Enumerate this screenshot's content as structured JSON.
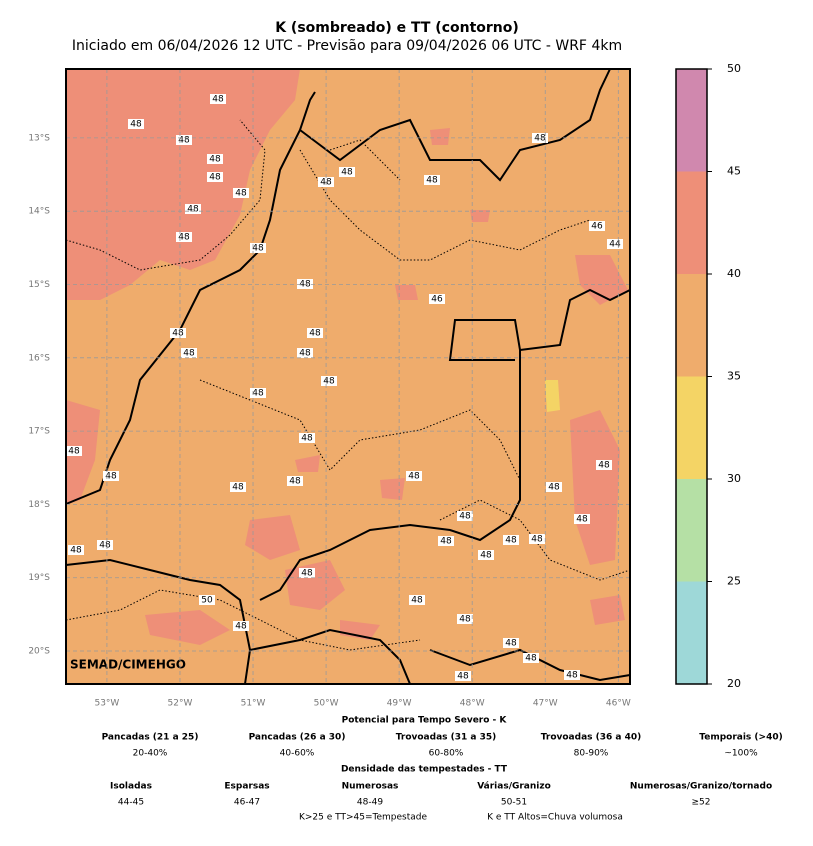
{
  "title": "K (sombreado) e TT (contorno)",
  "subtitle": "Iniciado em 06/04/2026 12 UTC - Previsão para 09/04/2026 06 UTC - WRF 4km",
  "credit": "SEMAD/CIMEHGO",
  "map": {
    "xlim": [
      -53.56,
      -45.84
    ],
    "ylim": [
      -20.45,
      -12.06
    ],
    "xticks": [
      {
        "value": -53,
        "label": "53°W"
      },
      {
        "value": -52,
        "label": "52°W"
      },
      {
        "value": -51,
        "label": "51°W"
      },
      {
        "value": -50,
        "label": "50°W"
      },
      {
        "value": -49,
        "label": "49°W"
      },
      {
        "value": -48,
        "label": "48°W"
      },
      {
        "value": -47,
        "label": "47°W"
      },
      {
        "value": -46,
        "label": "46°W"
      }
    ],
    "yticks": [
      {
        "value": -13,
        "label": "13°S"
      },
      {
        "value": -14,
        "label": "14°S"
      },
      {
        "value": -15,
        "label": "15°S"
      },
      {
        "value": -16,
        "label": "16°S"
      },
      {
        "value": -17,
        "label": "17°S"
      },
      {
        "value": -18,
        "label": "18°S"
      },
      {
        "value": -19,
        "label": "19°S"
      },
      {
        "value": -20,
        "label": "20°S"
      }
    ],
    "grid": true,
    "contour_labels": [
      48,
      48,
      48,
      48,
      48,
      48,
      48,
      48,
      48,
      48,
      48,
      48,
      48,
      48,
      48,
      48,
      48,
      48,
      48,
      48,
      48,
      48,
      48,
      48,
      48,
      48,
      48,
      48,
      48,
      48,
      48,
      48,
      48,
      50,
      48,
      48,
      48,
      48,
      48,
      48,
      48,
      48,
      48,
      48,
      48,
      46,
      44,
      46
    ]
  },
  "colorbar": {
    "ylim": [
      20,
      50
    ],
    "yticks": [
      20,
      25,
      30,
      35,
      40,
      45,
      50
    ],
    "colors": [
      "#9ed8d8",
      "#b5e0a5",
      "#f4d465",
      "#efac6c",
      "#ee8f78",
      "#d088ae"
    ]
  },
  "legend": {
    "title_k": "Potencial para Tempo Severo - K",
    "k_items": [
      {
        "name": "Pancadas (21 a 25)",
        "range": "20-40%"
      },
      {
        "name": "Pancadas (26 a 30)",
        "range": "40-60%"
      },
      {
        "name": "Trovoadas (31 a 35)",
        "range": "60-80%"
      },
      {
        "name": "Trovoadas (36 a 40)",
        "range": "80-90%"
      },
      {
        "name": "Temporais (>40)",
        "range": "~100%"
      }
    ],
    "title_tt": "Densidade das tempestades - TT",
    "tt_items": [
      {
        "name": "Isoladas",
        "range": "44-45"
      },
      {
        "name": "Esparsas",
        "range": "46-47"
      },
      {
        "name": "Numerosas",
        "range": "48-49"
      },
      {
        "name": "Várias/Granizo",
        "range": "50-51"
      },
      {
        "name": "Numerosas/Granizo/tornado",
        "range": "≥52"
      }
    ],
    "notes": [
      "K>25 e TT>45=Tempestade",
      "K e TT Altos=Chuva volumosa"
    ]
  }
}
